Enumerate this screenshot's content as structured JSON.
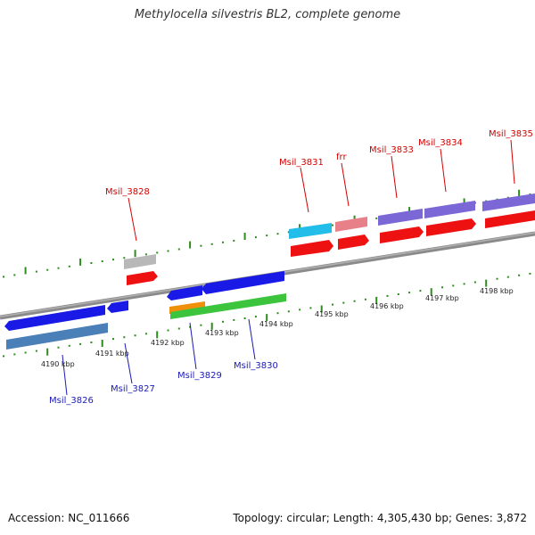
{
  "title": "Methylocella silvestris BL2, complete genome",
  "footer": {
    "accession": "Accession: NC_011666",
    "summary": "Topology: circular; Length: 4,305,430 bp; Genes: 3,872"
  },
  "scale_labels": [
    "4190 kbp",
    "4191 kbp",
    "4192 kbp",
    "4193 kbp",
    "4194 kbp",
    "4195 kbp",
    "4196 kbp",
    "4197 kbp",
    "4198 kbp"
  ],
  "gene_labels_plus": [
    "Msil_3828",
    "Msil_3831",
    "frr",
    "Msil_3833",
    "Msil_3834",
    "Msil_3835"
  ],
  "gene_labels_minus": [
    "Msil_3826",
    "Msil_3827",
    "Msil_3829",
    "Msil_3830"
  ],
  "colors": {
    "backbone": "#8a8a8a",
    "tick": "#2e8b1e",
    "plus_label": "#d40000",
    "minus_label": "#1a1ab8",
    "cds_red": "#ee1111",
    "cds_blue": "#1a1ae6",
    "cds_purple": "#7b68d6",
    "cds_steel": "#4a7fb8",
    "cds_cyan": "#22bde8",
    "cds_pink": "#e8808a",
    "cds_grey": "#b8b8b8",
    "cds_green": "#3cc43c",
    "cds_orange": "#f0900a"
  }
}
